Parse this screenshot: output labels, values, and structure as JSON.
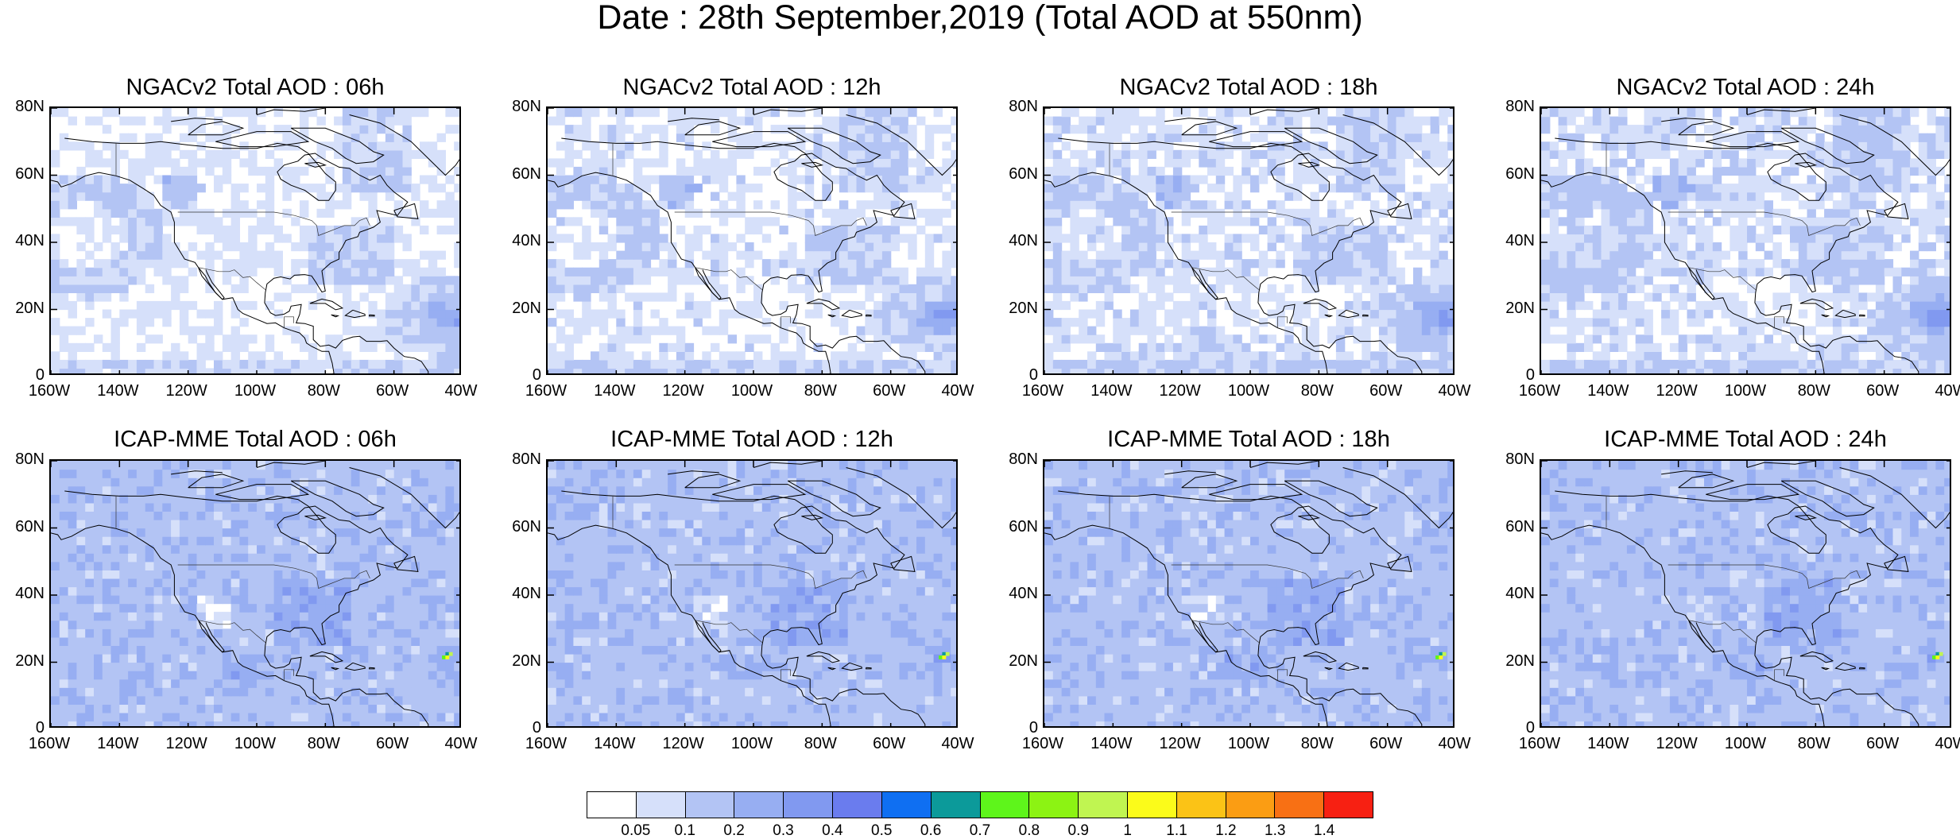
{
  "title": "Date : 28th September,2019 (Total AOD at 550nm)",
  "panels": [
    {
      "title": "NGACv2 Total AOD : 06h",
      "model": "ngac"
    },
    {
      "title": "NGACv2 Total AOD : 12h",
      "model": "ngac"
    },
    {
      "title": "NGACv2 Total AOD : 18h",
      "model": "ngac"
    },
    {
      "title": "NGACv2 Total AOD : 24h",
      "model": "ngac"
    },
    {
      "title": "ICAP-MME Total AOD : 06h",
      "model": "icap"
    },
    {
      "title": "ICAP-MME Total AOD : 12h",
      "model": "icap"
    },
    {
      "title": "ICAP-MME Total AOD : 18h",
      "model": "icap"
    },
    {
      "title": "ICAP-MME Total AOD : 24h",
      "model": "icap"
    }
  ],
  "lat_labels": [
    "80N",
    "60N",
    "40N",
    "20N",
    "0"
  ],
  "lon_labels": [
    "160W",
    "140W",
    "120W",
    "100W",
    "80W",
    "60W",
    "40W"
  ],
  "colorbar": {
    "labels": [
      "0.05",
      "0.1",
      "0.2",
      "0.3",
      "0.4",
      "0.5",
      "0.6",
      "0.7",
      "0.8",
      "0.9",
      "1",
      "1.1",
      "1.2",
      "1.3",
      "1.4"
    ],
    "colors": [
      "#ffffff",
      "#d6e0fa",
      "#b3c4f4",
      "#97aef2",
      "#8199f0",
      "#6a7cee",
      "#0f6ff2",
      "#0c9a9a",
      "#5ef51b",
      "#8cf313",
      "#c0f551",
      "#fbfb1a",
      "#fbc316",
      "#fb9d13",
      "#f87014",
      "#f72012"
    ]
  }
}
